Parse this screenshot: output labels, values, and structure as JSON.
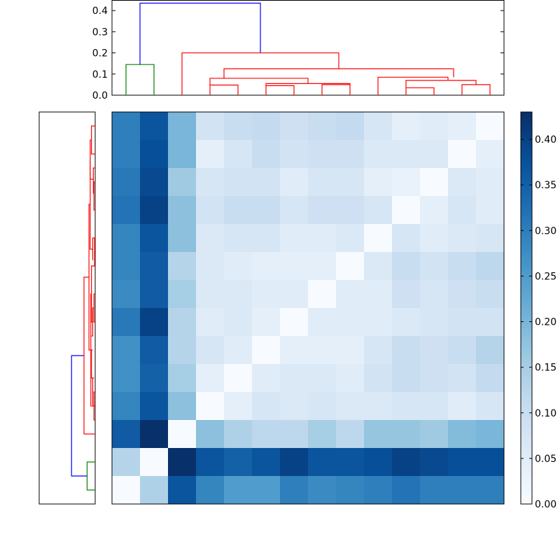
{
  "chart_data": [
    {
      "type": "dendrogram",
      "panel": "top",
      "ylim": [
        0,
        0.45
      ],
      "yticks": [
        "0.0",
        "0.1",
        "0.2",
        "0.3",
        "0.4"
      ],
      "ytick_values": [
        0,
        0.1,
        0.2,
        0.3,
        0.4
      ],
      "leaf_count": 14,
      "links": [
        {
          "x1": 0.5,
          "x2": 1.5,
          "h": 0.0,
          "hl": 0.0,
          "hr": 0.0,
          "color": "#008000"
        },
        {
          "x1": 1.0,
          "x2": 1.0,
          "h": 0.145,
          "hl": 0.0,
          "hr": 0.0,
          "color": "#008000"
        },
        {
          "x1": 3.5,
          "x2": 4.5,
          "h": 0.048,
          "hl": 0.0,
          "hr": 0.0,
          "color": "#ff0000"
        },
        {
          "x1": 6.0,
          "x2": 7.0,
          "h": 0.055,
          "hl": 0.0,
          "hr": 0.0,
          "color": "#ff0000"
        },
        {
          "x1": 5.5,
          "x2": 6.5,
          "h": 0.045,
          "hl": 0.0,
          "hr": 0.055,
          "color": "#ff0000"
        },
        {
          "x1": 7.5,
          "x2": 8.5,
          "h": 0.05,
          "hl": 0.0,
          "hr": 0.0,
          "color": "#ff0000"
        },
        {
          "x1": 11.0,
          "x2": 12.0,
          "h": 0.07,
          "hl": 0.035,
          "hr": 0.05,
          "color": "#ff0000"
        },
        {
          "x1": 10.5,
          "x2": 11.5,
          "h": 0.035,
          "hl": 0.0,
          "hr": 0.0,
          "color": "#ff0000"
        },
        {
          "x1": 12.5,
          "x2": 13.5,
          "h": 0.05,
          "hl": 0.0,
          "hr": 0.0,
          "color": "#ff0000"
        }
      ],
      "merges": [
        {
          "left": 1.0,
          "right": 5.375,
          "height": 0.435,
          "left_base": 0.145,
          "right_base": 0.2,
          "color": "#0000ff"
        },
        {
          "left": 2.5,
          "right": 8.25,
          "height": 0.2,
          "left_base": 0.0,
          "right_base": 0.125,
          "color": "#ff0000"
        },
        {
          "left": 5.375,
          "right": 11.125,
          "height": 0.125,
          "left_base": 0.08,
          "right_base": 0.085,
          "color": "#ff0000"
        },
        {
          "left": 4.0,
          "right": 6.75,
          "height": 0.08,
          "left_base": 0.048,
          "right_base": 0.055,
          "color": "#ff0000"
        },
        {
          "left": 9.5,
          "right": 12.75,
          "height": 0.085,
          "left_base": 0.0,
          "right_base": 0.07,
          "color": "#ff0000"
        }
      ]
    },
    {
      "type": "heatmap",
      "rows": 14,
      "cols": 14,
      "colormap": "Blues",
      "vmin": 0.0,
      "vmax": 0.43,
      "colorbar_ticks": [
        "0.00",
        "0.05",
        "0.10",
        "0.15",
        "0.20",
        "0.25",
        "0.30",
        "0.35",
        "0.40"
      ],
      "colorbar_tick_values": [
        0,
        0.05,
        0.1,
        0.15,
        0.2,
        0.25,
        0.3,
        0.35,
        0.4
      ],
      "values": [
        [
          0.3,
          0.37,
          0.2,
          0.08,
          0.1,
          0.11,
          0.09,
          0.1,
          0.11,
          0.07,
          0.04,
          0.05,
          0.04,
          0.0
        ],
        [
          0.3,
          0.38,
          0.2,
          0.04,
          0.07,
          0.1,
          0.08,
          0.09,
          0.09,
          0.06,
          0.06,
          0.06,
          0.0,
          0.04
        ],
        [
          0.31,
          0.39,
          0.16,
          0.07,
          0.08,
          0.08,
          0.05,
          0.07,
          0.07,
          0.04,
          0.03,
          0.0,
          0.06,
          0.05
        ],
        [
          0.32,
          0.4,
          0.18,
          0.08,
          0.1,
          0.1,
          0.07,
          0.09,
          0.09,
          0.07,
          0.0,
          0.04,
          0.07,
          0.05
        ],
        [
          0.29,
          0.37,
          0.18,
          0.06,
          0.07,
          0.07,
          0.05,
          0.05,
          0.06,
          0.0,
          0.07,
          0.05,
          0.06,
          0.07
        ],
        [
          0.29,
          0.36,
          0.13,
          0.06,
          0.05,
          0.04,
          0.04,
          0.04,
          0.0,
          0.06,
          0.1,
          0.08,
          0.1,
          0.12
        ],
        [
          0.28,
          0.36,
          0.15,
          0.06,
          0.06,
          0.05,
          0.05,
          0.0,
          0.05,
          0.05,
          0.09,
          0.07,
          0.09,
          0.1
        ],
        [
          0.31,
          0.4,
          0.13,
          0.05,
          0.06,
          0.04,
          0.0,
          0.05,
          0.05,
          0.05,
          0.06,
          0.07,
          0.08,
          0.08
        ],
        [
          0.27,
          0.36,
          0.13,
          0.07,
          0.05,
          0.0,
          0.04,
          0.04,
          0.04,
          0.07,
          0.1,
          0.09,
          0.1,
          0.13
        ],
        [
          0.27,
          0.35,
          0.15,
          0.04,
          0.0,
          0.05,
          0.06,
          0.06,
          0.05,
          0.08,
          0.1,
          0.09,
          0.08,
          0.11
        ],
        [
          0.29,
          0.37,
          0.18,
          0.0,
          0.04,
          0.07,
          0.06,
          0.07,
          0.06,
          0.06,
          0.07,
          0.07,
          0.05,
          0.07
        ],
        [
          0.36,
          0.43,
          0.0,
          0.18,
          0.14,
          0.12,
          0.12,
          0.15,
          0.12,
          0.17,
          0.17,
          0.16,
          0.19,
          0.2
        ],
        [
          0.13,
          0.0,
          0.43,
          0.37,
          0.35,
          0.37,
          0.4,
          0.37,
          0.37,
          0.38,
          0.4,
          0.39,
          0.38,
          0.38
        ],
        [
          0.0,
          0.14,
          0.37,
          0.29,
          0.25,
          0.25,
          0.3,
          0.28,
          0.29,
          0.3,
          0.32,
          0.3,
          0.3,
          0.3
        ]
      ]
    },
    {
      "type": "dendrogram",
      "panel": "left",
      "leaf_count": 14,
      "note_orientation": "leaves on right, root on left"
    }
  ]
}
